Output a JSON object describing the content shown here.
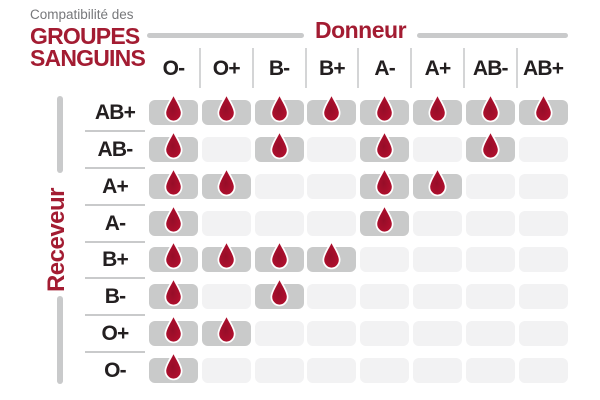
{
  "brand": {
    "subtitle": "Compatibilité des",
    "title_line1": "GROUPES",
    "title_line2": "SANGUINS"
  },
  "axes": {
    "donor_label": "Donneur",
    "receiver_label": "Receveur"
  },
  "chart_data": {
    "type": "heatmap",
    "title": "Compatibilité des GROUPES SANGUINS",
    "columns_axis_label": "Donneur",
    "rows_axis_label": "Receveur",
    "columns": [
      "O-",
      "O+",
      "B-",
      "B+",
      "A-",
      "A+",
      "AB-",
      "AB+"
    ],
    "rows": [
      "AB+",
      "AB-",
      "A+",
      "A-",
      "B+",
      "B-",
      "O+",
      "O-"
    ],
    "values": [
      [
        1,
        1,
        1,
        1,
        1,
        1,
        1,
        1
      ],
      [
        1,
        0,
        1,
        0,
        1,
        0,
        1,
        0
      ],
      [
        1,
        1,
        0,
        0,
        1,
        1,
        0,
        0
      ],
      [
        1,
        0,
        0,
        0,
        1,
        0,
        0,
        0
      ],
      [
        1,
        1,
        1,
        1,
        0,
        0,
        0,
        0
      ],
      [
        1,
        0,
        1,
        0,
        0,
        0,
        0,
        0
      ],
      [
        1,
        1,
        0,
        0,
        0,
        0,
        0,
        0
      ],
      [
        1,
        0,
        0,
        0,
        0,
        0,
        0,
        0
      ]
    ],
    "marker_icon": "blood-drop-icon",
    "marker_meaning": "compatible"
  },
  "colors": {
    "accent": "#A31C32",
    "drop": "#B8102F",
    "drop_dark": "#960D28",
    "cell_active": "#C9CACA",
    "cell_inactive": "#F2F2F3",
    "label": "#231F20",
    "subtitle": "#77787B",
    "line": "#C9CACB"
  }
}
